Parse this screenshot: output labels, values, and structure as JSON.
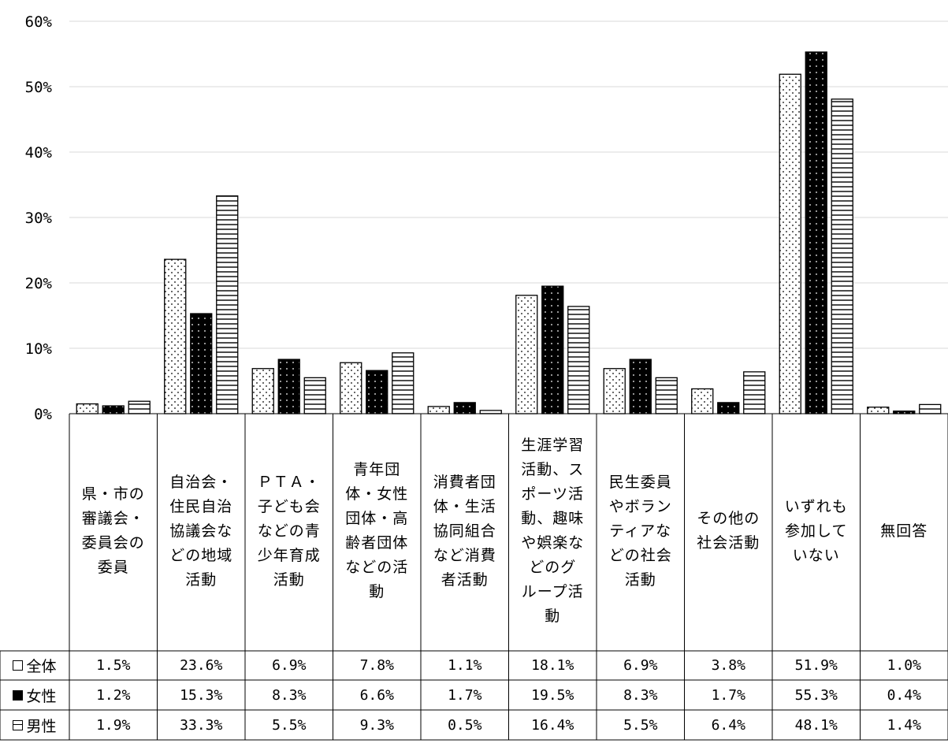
{
  "chart_data": {
    "type": "bar",
    "categories": [
      "県・市の\n審議会・\n委員会の\n委員",
      "自治会・\n住民自治\n協議会な\nどの地域\n活動",
      "ＰＴＡ・\n子ども会\nなどの青\n少年育成\n活動",
      "青年団\n体・女性\n団体・高\n齢者団体\nなどの活\n動",
      "消費者団\n体・生活\n協同組合\nなど消費\n者活動",
      "生涯学習\n活動、ス\nポーツ活\n動、趣味\nや娯楽な\nどのグ\nループ活\n動",
      "民生委員\nやボラン\nティアな\nどの社会\n活動",
      "その他の\n社会活動",
      "いずれも\n参加して\nいない",
      "無回答"
    ],
    "series": [
      {
        "name": "全体",
        "pattern": "dots",
        "values": [
          1.5,
          23.6,
          6.9,
          7.8,
          1.1,
          18.1,
          6.9,
          3.8,
          51.9,
          1.0
        ],
        "labels": [
          "1.5%",
          "23.6%",
          "6.9%",
          "7.8%",
          "1.1%",
          "18.1%",
          "6.9%",
          "3.8%",
          "51.9%",
          "1.0%"
        ]
      },
      {
        "name": "女性",
        "pattern": "solid",
        "values": [
          1.2,
          15.3,
          8.3,
          6.6,
          1.7,
          19.5,
          8.3,
          1.7,
          55.3,
          0.4
        ],
        "labels": [
          "1.2%",
          "15.3%",
          "8.3%",
          "6.6%",
          "1.7%",
          "19.5%",
          "8.3%",
          "1.7%",
          "55.3%",
          "0.4%"
        ]
      },
      {
        "name": "男性",
        "pattern": "hlines",
        "values": [
          1.9,
          33.3,
          5.5,
          9.3,
          0.5,
          16.4,
          5.5,
          6.4,
          48.1,
          1.4
        ],
        "labels": [
          "1.9%",
          "33.3%",
          "5.5%",
          "9.3%",
          "0.5%",
          "16.4%",
          "5.5%",
          "6.4%",
          "48.1%",
          "1.4%"
        ]
      }
    ],
    "yticks": [
      "0%",
      "10%",
      "20%",
      "30%",
      "40%",
      "50%",
      "60%"
    ],
    "ylim": [
      0,
      60
    ],
    "grid": true,
    "legend": "data-table",
    "colors": {
      "grid": "#d9d9d9",
      "bar_stroke": "#000000",
      "fill": "#ffffff",
      "solid": "#000000"
    }
  }
}
